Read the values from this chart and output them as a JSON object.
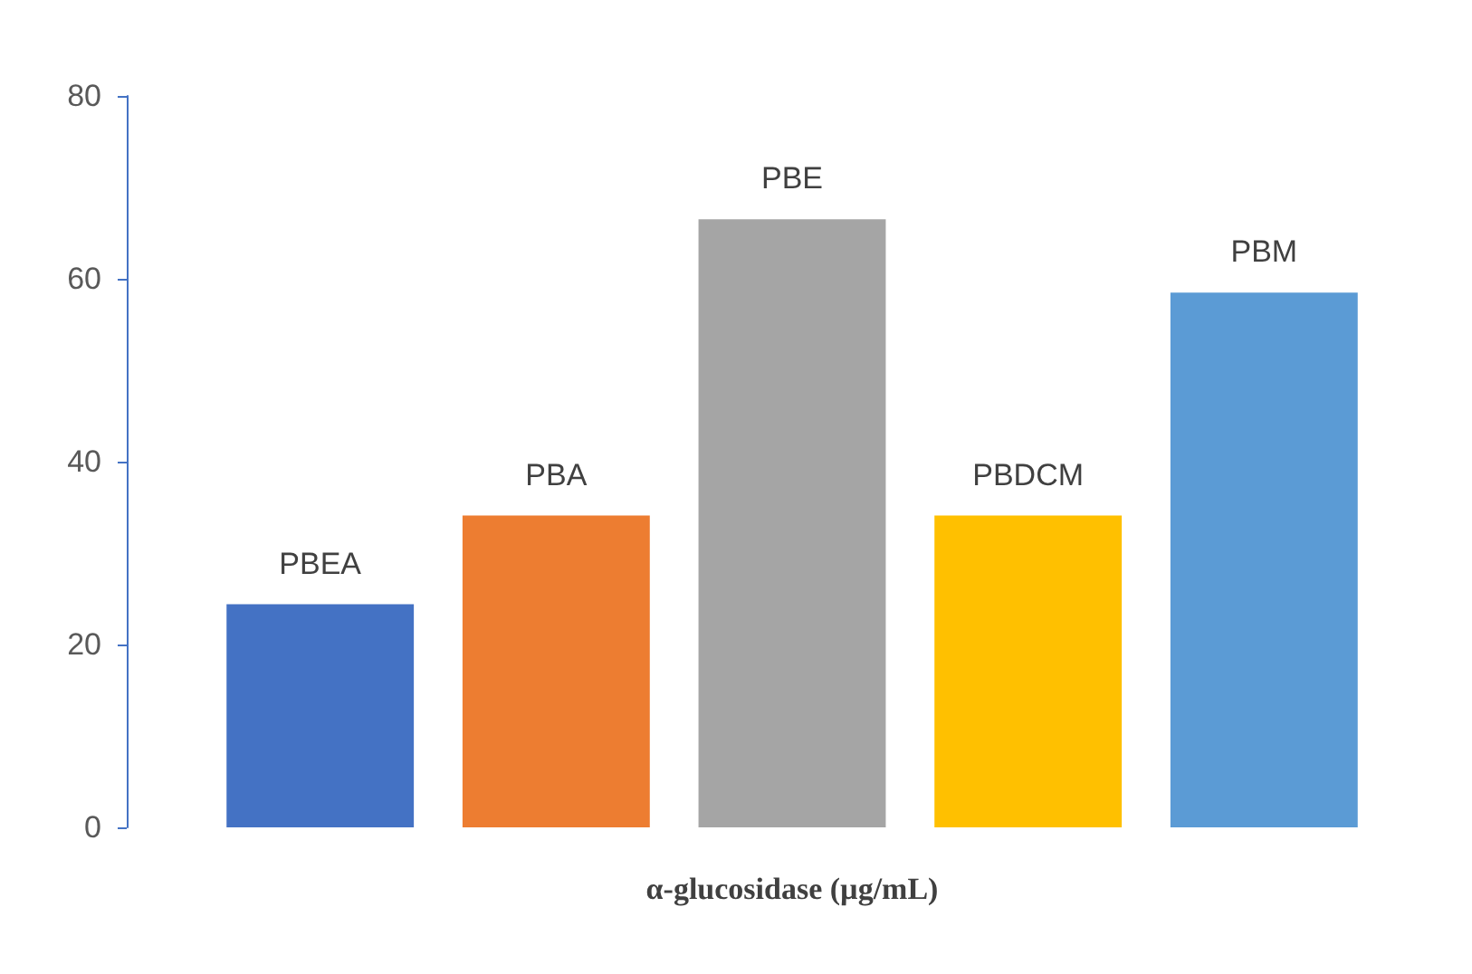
{
  "chart_data": {
    "type": "bar",
    "categories": [
      null
    ],
    "xlabel": "α-glucosidase (µg/mL)",
    "series": [
      {
        "name": "PBEA",
        "color": "#4472c4",
        "values": [
          24.4
        ]
      },
      {
        "name": "PBA",
        "color": "#ed7d31",
        "values": [
          34.1
        ]
      },
      {
        "name": "PBE",
        "color": "#a5a5a5",
        "values": [
          66.5
        ]
      },
      {
        "name": "PBDCM",
        "color": "#ffc000",
        "values": [
          34.1
        ]
      },
      {
        "name": "PBM",
        "color": "#5b9bd5",
        "values": [
          58.5
        ]
      }
    ],
    "ylim": [
      0,
      80
    ],
    "yticks": [
      0,
      20,
      40,
      60,
      80
    ],
    "grid": false,
    "legend": false
  }
}
